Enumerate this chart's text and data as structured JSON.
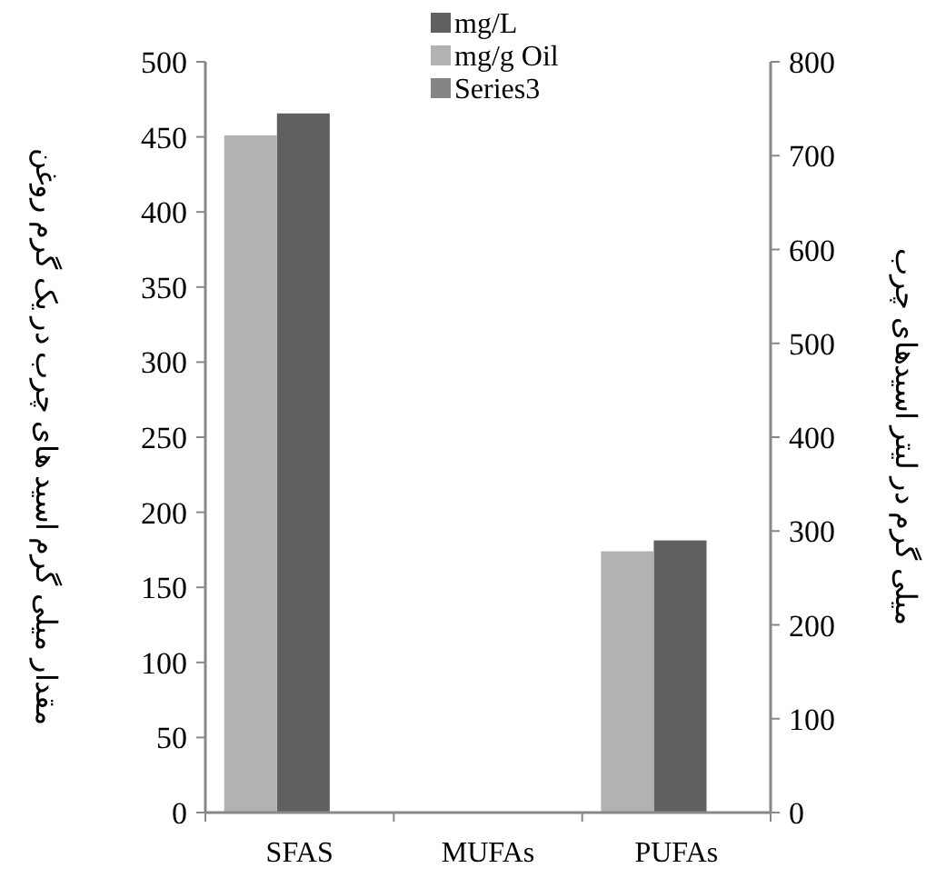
{
  "chart_data": {
    "type": "bar",
    "categories": [
      "SFAS",
      "MUFAs",
      "PUFAs"
    ],
    "series": [
      {
        "name": "mg/L",
        "color": "#606060",
        "axis": "y2",
        "values": [
          745,
          0,
          290
        ]
      },
      {
        "name": "mg/g Oil",
        "color": "#b2b2b2",
        "values": [
          451,
          0,
          174
        ]
      },
      {
        "name": "Series3",
        "color": "#858585",
        "values": [
          null,
          null,
          null
        ]
      }
    ],
    "ylabel": "مقدار میلی گرم اسید های چرب در یک گرم روغن",
    "y2label": "میلی گرم در لیتر اسیدهای چرب",
    "ylim": [
      0,
      500
    ],
    "yticks": [
      0,
      50,
      100,
      150,
      200,
      250,
      300,
      350,
      400,
      450,
      500
    ],
    "y2lim": [
      0,
      800
    ],
    "y2ticks": [
      0,
      100,
      200,
      300,
      400,
      500,
      600,
      700,
      800
    ],
    "legend": "top",
    "grid": false
  }
}
